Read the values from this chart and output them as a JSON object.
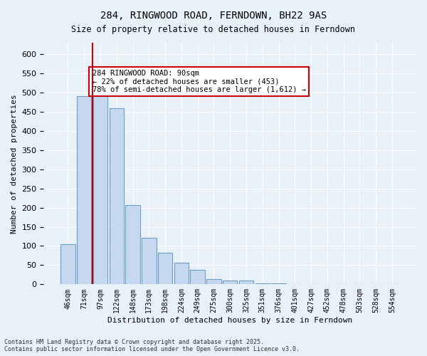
{
  "title1": "284, RINGWOOD ROAD, FERNDOWN, BH22 9AS",
  "title2": "Size of property relative to detached houses in Ferndown",
  "xlabel": "Distribution of detached houses by size in Ferndown",
  "ylabel": "Number of detached properties",
  "categories": [
    "46sqm",
    "71sqm",
    "97sqm",
    "122sqm",
    "148sqm",
    "173sqm",
    "198sqm",
    "224sqm",
    "249sqm",
    "275sqm",
    "300sqm",
    "325sqm",
    "351sqm",
    "376sqm",
    "401sqm",
    "427sqm",
    "452sqm",
    "478sqm",
    "503sqm",
    "528sqm",
    "554sqm"
  ],
  "values": [
    105,
    490,
    490,
    460,
    207,
    122,
    82,
    57,
    38,
    14,
    10,
    10,
    2,
    2,
    1,
    1,
    0,
    0,
    0,
    0,
    0
  ],
  "bar_color": "#c5d8f0",
  "bar_edge_color": "#6a9ec5",
  "vline_x": 1,
  "vline_color": "#cc0000",
  "annotation_text": "284 RINGWOOD ROAD: 90sqm\n← 22% of detached houses are smaller (453)\n78% of semi-detached houses are larger (1,612) →",
  "annotation_box_color": "#ffffff",
  "annotation_box_edge": "#cc0000",
  "footer": "Contains HM Land Registry data © Crown copyright and database right 2025.\nContains public sector information licensed under the Open Government Licence v3.0.",
  "ylim": [
    0,
    630
  ],
  "bg_color": "#e8f0f8",
  "plot_bg_color": "#e8f0f8",
  "grid_color": "#ffffff"
}
